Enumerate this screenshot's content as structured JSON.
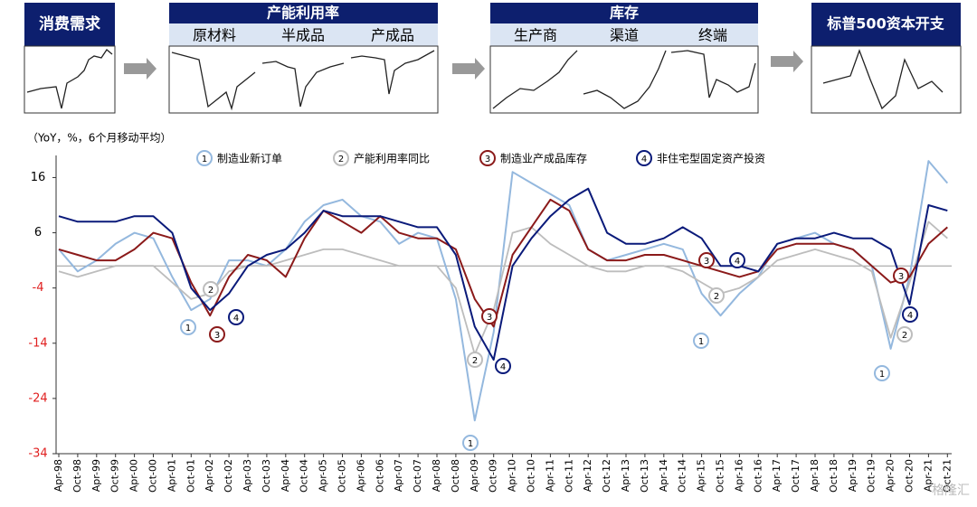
{
  "diagram": {
    "boxes": [
      {
        "title": "消费需求"
      },
      {
        "title": "产能利用率",
        "items": [
          "原材料",
          "半成品",
          "产成品"
        ]
      },
      {
        "title": "库存",
        "items": [
          "生产商",
          "渠道",
          "终端"
        ]
      },
      {
        "title": "标普500资本开支"
      }
    ]
  },
  "chart_data": {
    "type": "line",
    "unit_label": "（YoY，%，6个月移动平均）",
    "categories": [
      "Apr-98",
      "Oct-98",
      "Apr-99",
      "Oct-99",
      "Apr-00",
      "Oct-00",
      "Apr-01",
      "Oct-01",
      "Apr-02",
      "Oct-02",
      "Apr-03",
      "Oct-03",
      "Apr-04",
      "Oct-04",
      "Apr-05",
      "Oct-05",
      "Apr-06",
      "Oct-06",
      "Apr-07",
      "Oct-07",
      "Apr-08",
      "Oct-08",
      "Apr-09",
      "Oct-09",
      "Apr-10",
      "Oct-10",
      "Apr-11",
      "Oct-11",
      "Apr-12",
      "Oct-12",
      "Apr-13",
      "Oct-13",
      "Apr-14",
      "Oct-14",
      "Apr-15",
      "Oct-15",
      "Apr-16",
      "Oct-16",
      "Apr-17",
      "Oct-17",
      "Apr-18",
      "Oct-18",
      "Apr-19",
      "Oct-19",
      "Apr-20",
      "Oct-20",
      "Apr-21",
      "Oct-21"
    ],
    "series": [
      {
        "number": "1",
        "name": "制造业新订单",
        "color": "#94b8de",
        "values": [
          3,
          -1,
          1,
          4,
          6,
          5,
          -2,
          -8,
          -6,
          1,
          1,
          0,
          3,
          8,
          11,
          12,
          9,
          8,
          4,
          6,
          5,
          -6,
          -28,
          -12,
          17,
          15,
          13,
          11,
          3,
          1,
          2,
          3,
          4,
          3,
          -5,
          -9,
          -5,
          -2,
          4,
          5,
          6,
          4,
          3,
          0,
          -15,
          -2,
          19,
          15
        ]
      },
      {
        "number": "2",
        "name": "产能利用率同比",
        "color": "#bdbdbd",
        "values": [
          -1,
          -2,
          -1,
          0,
          0,
          0,
          -3,
          -6,
          -5,
          -1,
          0,
          0,
          1,
          2,
          3,
          3,
          2,
          1,
          0,
          0,
          0,
          -4,
          -16,
          -8,
          6,
          7,
          4,
          2,
          0,
          -1,
          -1,
          0,
          0,
          -1,
          -3,
          -5,
          -4,
          -2,
          1,
          2,
          3,
          2,
          1,
          -1,
          -13,
          -3,
          8,
          5
        ]
      },
      {
        "number": "3",
        "name": "制造业产成品库存",
        "color": "#8b1a1a",
        "values": [
          3,
          2,
          1,
          1,
          3,
          6,
          5,
          -3,
          -9,
          -2,
          2,
          1,
          -2,
          5,
          10,
          8,
          6,
          9,
          6,
          5,
          5,
          3,
          -6,
          -11,
          2,
          7,
          12,
          10,
          3,
          1,
          1,
          2,
          2,
          1,
          0,
          -1,
          -2,
          -1,
          3,
          4,
          4,
          4,
          3,
          0,
          -3,
          -2,
          4,
          7
        ]
      },
      {
        "number": "4",
        "name": "非住宅型固定资产投资",
        "color": "#0a1a7a",
        "values": [
          9,
          8,
          8,
          8,
          9,
          9,
          6,
          -4,
          -8,
          -5,
          0,
          2,
          3,
          6,
          10,
          9,
          9,
          9,
          8,
          7,
          7,
          2,
          -11,
          -17,
          0,
          5,
          9,
          12,
          14,
          6,
          4,
          4,
          5,
          7,
          5,
          0,
          0,
          -1,
          4,
          5,
          5,
          6,
          5,
          5,
          3,
          -7,
          11,
          10
        ]
      }
    ],
    "annotations": [
      "1",
      "1",
      "1",
      "1",
      "2",
      "2",
      "2",
      "2",
      "3",
      "3",
      "3",
      "3",
      "4",
      "4",
      "4",
      "4"
    ],
    "ylim": [
      -34,
      20
    ],
    "yticks": [
      16,
      6,
      -4,
      -14,
      -24,
      -34
    ],
    "negative_tick_color": "#e02020",
    "grid": false,
    "watermark": "格隆汇"
  }
}
